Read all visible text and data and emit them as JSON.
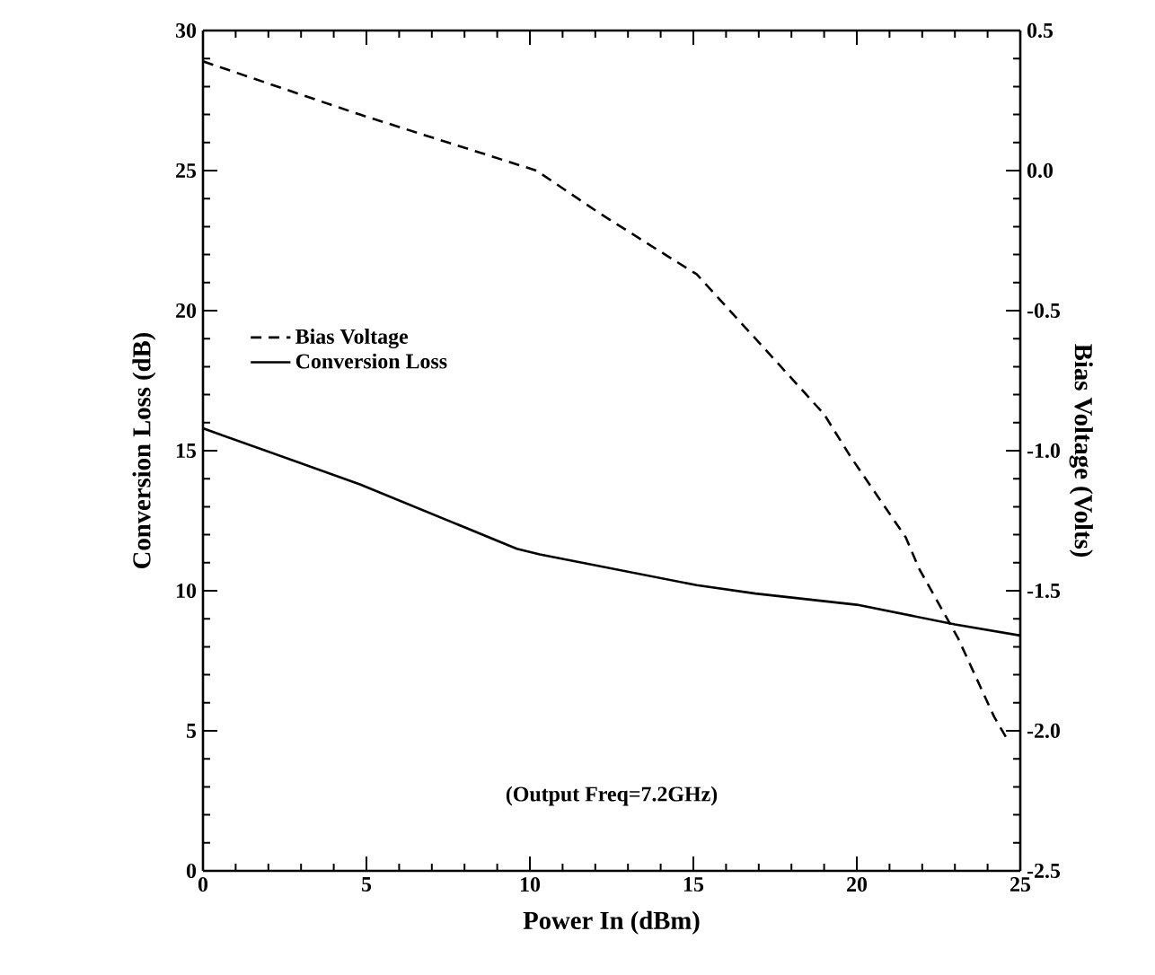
{
  "chart_data": {
    "type": "line",
    "xlabel": "Power In (dBm)",
    "ylabel": "Conversion Loss (dB)",
    "y2label": "Bias Voltage (Volts)",
    "xlim": [
      0,
      25
    ],
    "xticks": [
      0,
      5,
      10,
      15,
      20,
      25
    ],
    "ylim": [
      0,
      30
    ],
    "yticks": [
      0,
      5,
      10,
      15,
      20,
      25,
      30
    ],
    "y2lim": [
      -2.5,
      0.5
    ],
    "y2ticks": [
      {
        "value": -2.5,
        "label": "-2.5"
      },
      {
        "value": -2.0,
        "label": "-2.0"
      },
      {
        "value": -1.5,
        "label": "-1.5"
      },
      {
        "value": -1.0,
        "label": "-1.0"
      },
      {
        "value": -0.5,
        "label": "-0.5"
      },
      {
        "value": 0.0,
        "label": "0.0"
      },
      {
        "value": 0.5,
        "label": "0.5"
      }
    ],
    "legend": "left",
    "grid": false,
    "marker": "none",
    "annotations": [
      "(Output Freq=7.2GHz)"
    ],
    "series": [
      {
        "name": "Bias Voltage",
        "color": "#000000",
        "axis": "y2",
        "line_style": "dashed",
        "x": [
          0,
          4.8,
          10.2,
          12.1,
          14,
          15.1,
          16.9,
          19,
          19.8,
          21.5,
          21.9,
          23.1,
          24.2,
          24.6
        ],
        "values": [
          0.39,
          0.2,
          0.0,
          -0.15,
          -0.29,
          -0.37,
          -0.6,
          -0.87,
          -1.02,
          -1.31,
          -1.42,
          -1.67,
          -1.95,
          -2.03
        ]
      },
      {
        "name": "Conversion Loss",
        "color": "#000000",
        "axis": "y",
        "line_style": "solid",
        "x": [
          0,
          4.8,
          9.6,
          10.3,
          15.1,
          16.9,
          20,
          23,
          25
        ],
        "values": [
          15.8,
          13.8,
          11.5,
          11.3,
          10.2,
          9.9,
          9.5,
          8.8,
          8.4
        ]
      }
    ]
  }
}
